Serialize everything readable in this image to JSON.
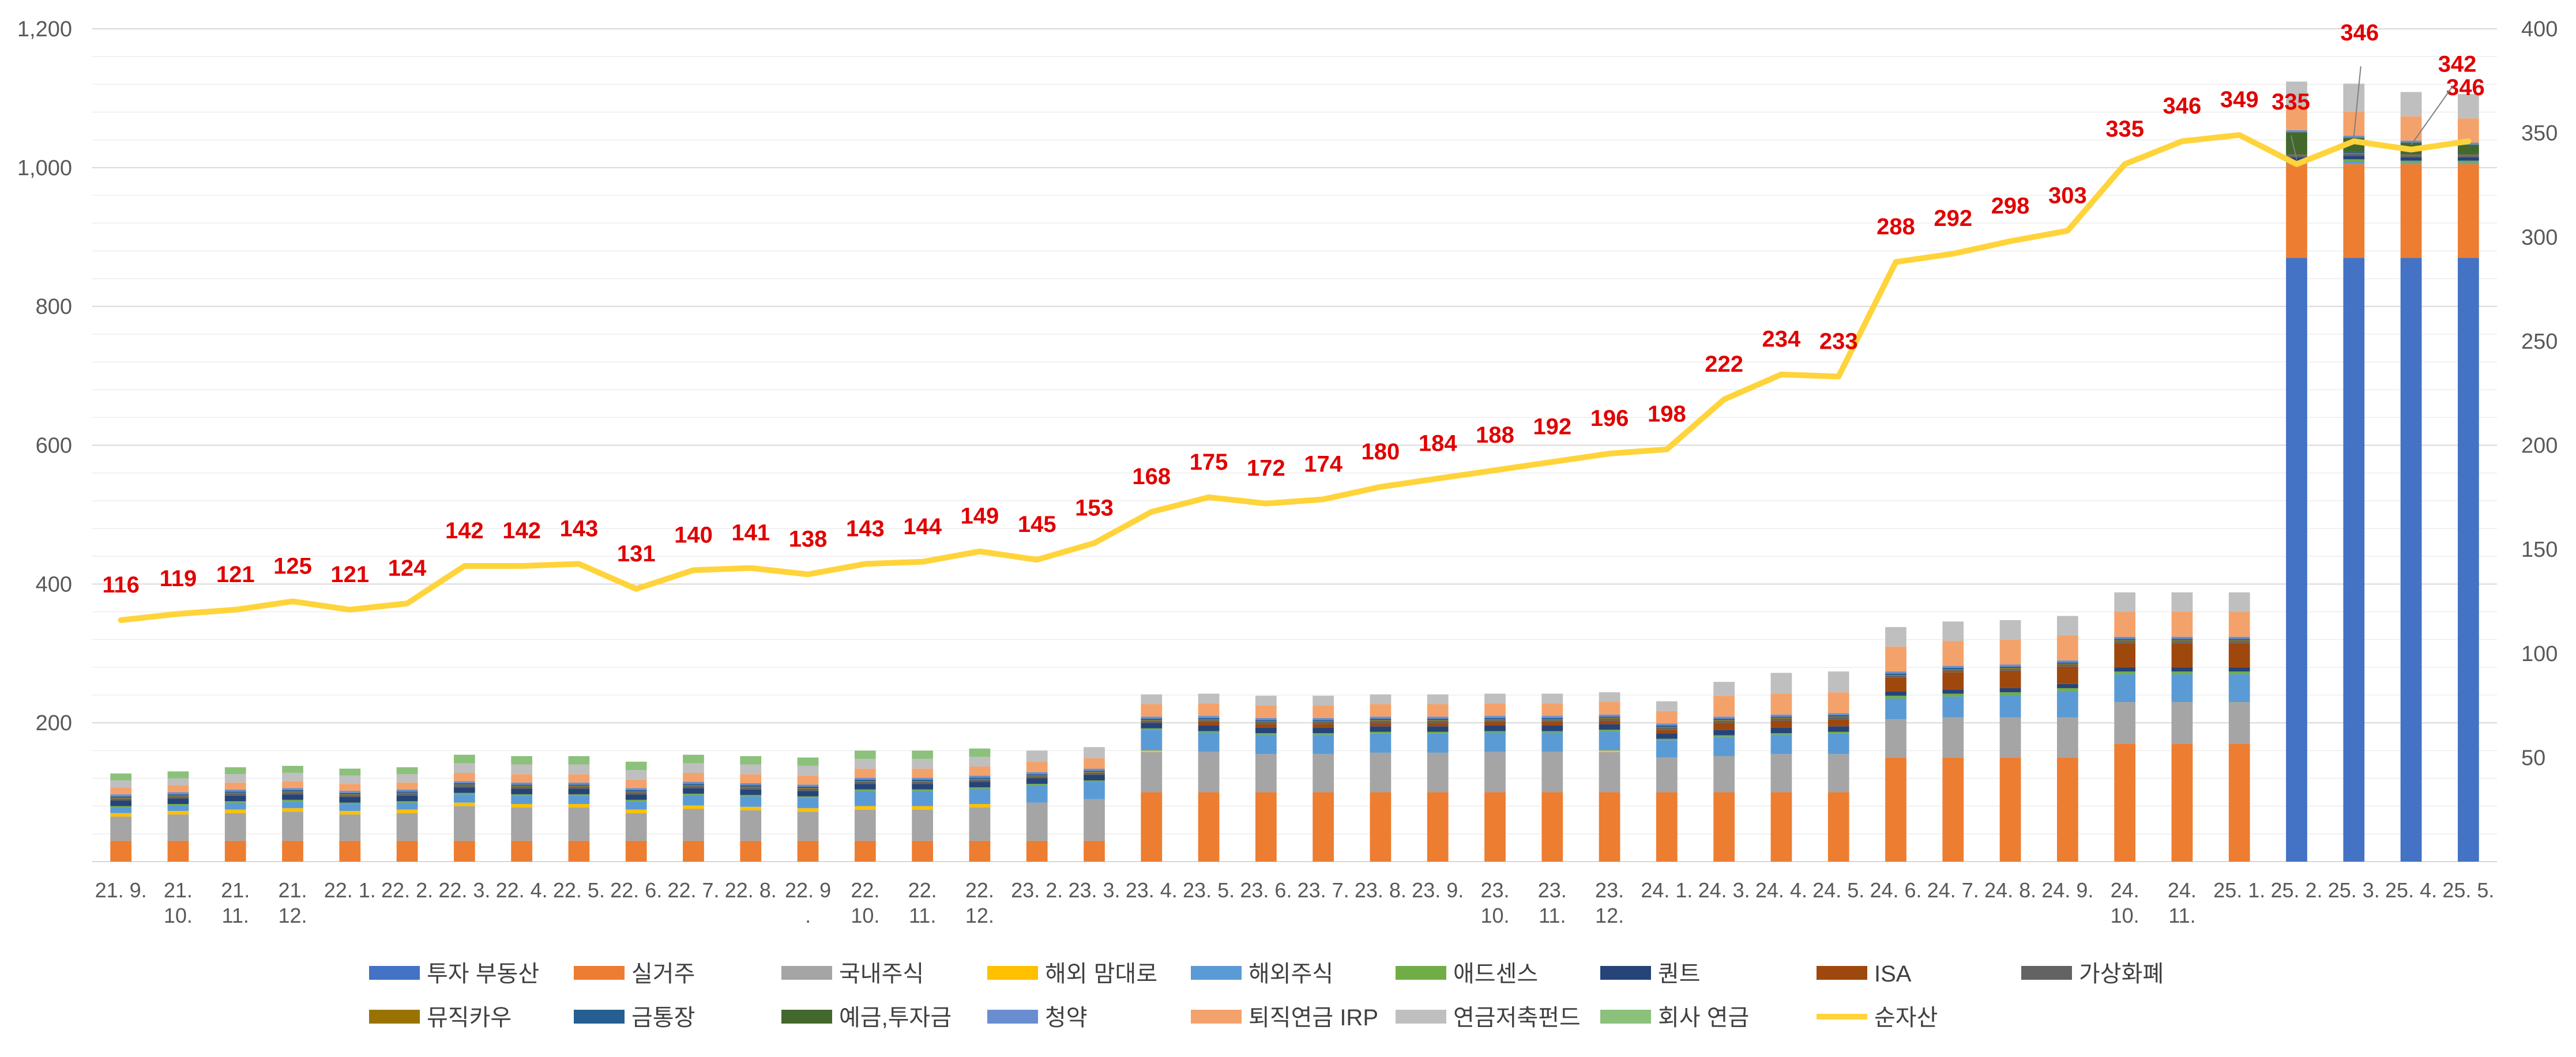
{
  "chart_data": {
    "type": "bar+line",
    "title": "",
    "xlabel": "",
    "ylabel": "",
    "ylim_left": [
      0,
      1200
    ],
    "yticks_left": [
      200,
      400,
      600,
      800,
      1000,
      1200
    ],
    "yticks_left_labels": [
      "200",
      "400",
      "600",
      "800",
      "1,000",
      "1,200"
    ],
    "ylim_right": [
      0,
      400
    ],
    "yticks_right": [
      50,
      100,
      150,
      200,
      250,
      300,
      350,
      400
    ],
    "yticks_right_labels": [
      "50",
      "100",
      "150",
      "200",
      "250",
      "300",
      "350",
      "400"
    ],
    "categories": [
      "21. 9.",
      "21. 10.",
      "21. 11.",
      "21. 12.",
      "22. 1.",
      "22. 2.",
      "22. 3.",
      "22. 4.",
      "22. 5.",
      "22. 6.",
      "22. 7.",
      "22. 8.",
      "22. 9.",
      "22. 10.",
      "22. 11.",
      "22. 12.",
      "23. 2.",
      "23. 3.",
      "23. 4.",
      "23. 5.",
      "23. 6.",
      "23. 7.",
      "23. 8.",
      "23. 9.",
      "23. 10.",
      "23. 11.",
      "23. 12.",
      "24. 1.",
      "24. 3.",
      "24. 4.",
      "24. 5.",
      "24. 6.",
      "24. 7.",
      "24. 8.",
      "24. 9.",
      "24. 10.",
      "24. 11.",
      "25. 1.",
      "25. 2.",
      "25. 3.",
      "25. 4.",
      "25. 5."
    ],
    "category_lines": [
      [
        "21. 9."
      ],
      [
        "21.",
        "10."
      ],
      [
        "21.",
        "11."
      ],
      [
        "21.",
        "12."
      ],
      [
        "22. 1."
      ],
      [
        "22. 2."
      ],
      [
        "22. 3."
      ],
      [
        "22. 4."
      ],
      [
        "22. 5."
      ],
      [
        "22. 6."
      ],
      [
        "22. 7."
      ],
      [
        "22. 8."
      ],
      [
        "22. 9",
        "."
      ],
      [
        "22.",
        "10."
      ],
      [
        "22.",
        "11."
      ],
      [
        "22.",
        "12."
      ],
      [
        "23. 2."
      ],
      [
        "23. 3."
      ],
      [
        "23. 4."
      ],
      [
        "23. 5."
      ],
      [
        "23. 6."
      ],
      [
        "23. 7."
      ],
      [
        "23. 8."
      ],
      [
        "23. 9."
      ],
      [
        "23.",
        "10."
      ],
      [
        "23.",
        "11."
      ],
      [
        "23.",
        "12."
      ],
      [
        "24. 1."
      ],
      [
        "24. 3."
      ],
      [
        "24. 4."
      ],
      [
        "24. 5."
      ],
      [
        "24. 6."
      ],
      [
        "24. 7."
      ],
      [
        "24. 8."
      ],
      [
        "24. 9."
      ],
      [
        "24.",
        "10."
      ],
      [
        "24.",
        "11."
      ],
      [
        "25. 1."
      ],
      [
        "25. 2."
      ],
      [
        "25. 3."
      ],
      [
        "25. 4."
      ],
      [
        "25. 5."
      ]
    ],
    "series": [
      {
        "name": "투자 부동산",
        "axis": "left",
        "color": "#4472C4",
        "values": [
          0,
          0,
          0,
          0,
          0,
          0,
          0,
          0,
          0,
          0,
          0,
          0,
          0,
          0,
          0,
          0,
          0,
          0,
          0,
          0,
          0,
          0,
          0,
          0,
          0,
          0,
          0,
          0,
          0,
          0,
          0,
          0,
          0,
          0,
          0,
          0,
          0,
          0,
          870,
          870,
          870,
          870
        ]
      },
      {
        "name": "실거주",
        "axis": "left",
        "color": "#ED7D31",
        "values": [
          30,
          30,
          30,
          30,
          30,
          30,
          30,
          30,
          30,
          30,
          30,
          30,
          30,
          30,
          30,
          30,
          30,
          30,
          100,
          100,
          100,
          100,
          100,
          100,
          100,
          100,
          100,
          100,
          100,
          100,
          100,
          150,
          150,
          150,
          150,
          170,
          170,
          170,
          135,
          135,
          135,
          135
        ]
      },
      {
        "name": "국내주식",
        "axis": "left",
        "color": "#A5A5A5",
        "values": [
          35,
          38,
          40,
          42,
          38,
          40,
          50,
          48,
          48,
          40,
          46,
          44,
          42,
          45,
          45,
          48,
          55,
          60,
          58,
          58,
          55,
          55,
          57,
          57,
          58,
          58,
          58,
          50,
          52,
          55,
          55,
          55,
          58,
          58,
          58,
          60,
          60,
          60,
          0,
          0,
          0,
          0
        ]
      },
      {
        "name": "해외 맘대로",
        "axis": "left",
        "color": "#FFC000",
        "values": [
          5,
          5,
          5,
          5,
          5,
          5,
          5,
          5,
          5,
          5,
          5,
          5,
          5,
          5,
          5,
          5,
          0,
          0,
          2,
          0,
          0,
          0,
          0,
          0,
          0,
          0,
          2,
          0,
          0,
          0,
          0,
          0,
          0,
          0,
          0,
          0,
          0,
          0,
          0,
          0,
          0,
          0
        ]
      },
      {
        "name": "해외주식",
        "axis": "left",
        "color": "#5B9BD5",
        "values": [
          8,
          8,
          10,
          10,
          10,
          10,
          12,
          12,
          12,
          12,
          15,
          15,
          15,
          22,
          22,
          22,
          25,
          25,
          30,
          28,
          28,
          28,
          28,
          28,
          28,
          28,
          28,
          25,
          28,
          28,
          30,
          30,
          30,
          32,
          38,
          40,
          40,
          40,
          2,
          4,
          2,
          2
        ]
      },
      {
        "name": "애드센스",
        "axis": "left",
        "color": "#70AD47",
        "values": [
          2,
          2,
          2,
          2,
          2,
          2,
          2,
          2,
          2,
          2,
          2,
          2,
          2,
          2,
          2,
          2,
          2,
          2,
          2,
          2,
          2,
          2,
          2,
          2,
          2,
          2,
          2,
          2,
          2,
          2,
          2,
          4,
          4,
          4,
          4,
          4,
          4,
          4,
          3,
          3,
          3,
          3
        ]
      },
      {
        "name": "퀀트",
        "axis": "left",
        "color": "#264478",
        "values": [
          8,
          8,
          8,
          8,
          8,
          8,
          8,
          8,
          8,
          8,
          8,
          8,
          8,
          8,
          8,
          8,
          8,
          8,
          8,
          8,
          8,
          8,
          8,
          8,
          8,
          8,
          8,
          8,
          8,
          8,
          8,
          6,
          6,
          6,
          6,
          6,
          6,
          6,
          5,
          5,
          5,
          5
        ]
      },
      {
        "name": "ISA",
        "axis": "left",
        "color": "#9E480E",
        "values": [
          0,
          0,
          0,
          0,
          0,
          0,
          0,
          0,
          0,
          0,
          0,
          0,
          0,
          0,
          0,
          0,
          0,
          0,
          0,
          5,
          5,
          5,
          5,
          5,
          5,
          5,
          5,
          5,
          10,
          10,
          10,
          20,
          25,
          25,
          25,
          35,
          35,
          35,
          0,
          0,
          0,
          0
        ]
      },
      {
        "name": "가상화폐",
        "axis": "left",
        "color": "#636363",
        "values": [
          3,
          3,
          3,
          3,
          3,
          3,
          3,
          3,
          3,
          3,
          3,
          3,
          3,
          3,
          3,
          3,
          3,
          3,
          3,
          3,
          3,
          3,
          3,
          3,
          3,
          3,
          3,
          3,
          3,
          3,
          3,
          3,
          3,
          3,
          3,
          3,
          3,
          3,
          3,
          3,
          3,
          3
        ]
      },
      {
        "name": "뮤직카우",
        "axis": "left",
        "color": "#997300",
        "values": [
          1,
          1,
          1,
          1,
          1,
          1,
          1,
          1,
          1,
          1,
          1,
          1,
          1,
          1,
          1,
          1,
          1,
          1,
          1,
          1,
          1,
          1,
          1,
          1,
          1,
          1,
          1,
          1,
          1,
          1,
          1,
          1,
          1,
          1,
          1,
          1,
          1,
          1,
          1,
          1,
          1,
          1
        ]
      },
      {
        "name": "금통장",
        "axis": "left",
        "color": "#255E91",
        "values": [
          2,
          2,
          2,
          2,
          2,
          2,
          2,
          2,
          2,
          2,
          2,
          2,
          2,
          2,
          2,
          2,
          2,
          2,
          2,
          2,
          2,
          2,
          2,
          2,
          2,
          2,
          2,
          2,
          2,
          2,
          2,
          2,
          2,
          2,
          2,
          2,
          2,
          2,
          2,
          2,
          2,
          2
        ]
      },
      {
        "name": "예금,투자금",
        "axis": "left",
        "color": "#43682B",
        "values": [
          0,
          0,
          0,
          0,
          0,
          0,
          0,
          0,
          0,
          0,
          0,
          0,
          0,
          0,
          0,
          0,
          0,
          0,
          0,
          0,
          0,
          0,
          0,
          0,
          0,
          0,
          0,
          0,
          0,
          0,
          0,
          0,
          0,
          0,
          0,
          0,
          0,
          0,
          30,
          20,
          15,
          12
        ]
      },
      {
        "name": "청약",
        "axis": "left",
        "color": "#698ED0",
        "values": [
          3,
          3,
          3,
          3,
          3,
          3,
          3,
          3,
          3,
          3,
          3,
          3,
          3,
          3,
          3,
          3,
          3,
          3,
          3,
          3,
          3,
          3,
          3,
          3,
          3,
          3,
          3,
          3,
          3,
          3,
          3,
          3,
          3,
          3,
          3,
          3,
          3,
          3,
          3,
          3,
          3,
          3
        ]
      },
      {
        "name": "퇴직연금 IRP",
        "axis": "left",
        "color": "#F4A26B",
        "values": [
          10,
          10,
          10,
          10,
          10,
          10,
          12,
          12,
          12,
          12,
          13,
          13,
          13,
          13,
          13,
          13,
          15,
          15,
          18,
          18,
          18,
          18,
          18,
          18,
          18,
          18,
          18,
          18,
          30,
          30,
          30,
          36,
          36,
          36,
          36,
          36,
          36,
          36,
          35,
          35,
          35,
          35
        ]
      },
      {
        "name": "연금저축펀드",
        "axis": "left",
        "color": "#BFBFBF",
        "values": [
          10,
          10,
          12,
          12,
          12,
          12,
          14,
          14,
          14,
          14,
          14,
          14,
          14,
          14,
          14,
          14,
          16,
          16,
          14,
          14,
          14,
          14,
          14,
          14,
          14,
          14,
          14,
          14,
          20,
          30,
          30,
          28,
          28,
          28,
          28,
          28,
          28,
          28,
          35,
          40,
          35,
          35
        ]
      },
      {
        "name": "회사 연금",
        "axis": "left",
        "color": "#8BC17A",
        "values": [
          10,
          10,
          10,
          10,
          10,
          10,
          12,
          12,
          12,
          12,
          12,
          12,
          12,
          12,
          12,
          12,
          0,
          0,
          0,
          0,
          0,
          0,
          0,
          0,
          0,
          0,
          0,
          0,
          0,
          0,
          0,
          0,
          0,
          0,
          0,
          0,
          0,
          0,
          0,
          0,
          0,
          0
        ]
      }
    ],
    "line": {
      "name": "순자산",
      "axis": "right",
      "color": "#FFD43B",
      "values": [
        116,
        119,
        121,
        125,
        121,
        124,
        142,
        142,
        143,
        131,
        140,
        141,
        138,
        143,
        144,
        149,
        145,
        153,
        168,
        175,
        172,
        174,
        180,
        184,
        188,
        192,
        196,
        198,
        222,
        234,
        233,
        288,
        292,
        298,
        303,
        335,
        346,
        349,
        335,
        346,
        342,
        346
      ],
      "labels": [
        "116",
        "119",
        "121",
        "125",
        "121",
        "124",
        "142",
        "142",
        "143",
        "131",
        "140",
        "141",
        "138",
        "143",
        "144",
        "149",
        "145",
        "153",
        "168",
        "175",
        "172",
        "174",
        "180",
        "184",
        "188",
        "192",
        "196",
        "198",
        "222",
        "234",
        "233",
        "288",
        "292",
        "298",
        "303",
        "335",
        "346",
        "349",
        "335",
        "346",
        "342",
        "346"
      ]
    },
    "legend_position": "bottom",
    "grid": true
  }
}
